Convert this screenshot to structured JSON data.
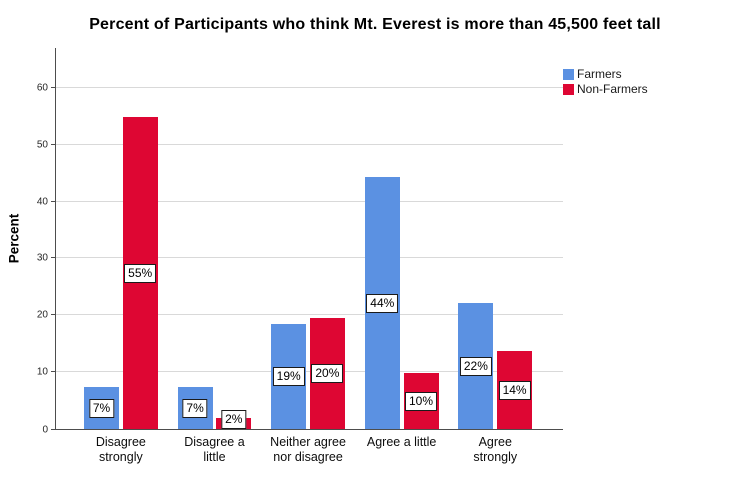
{
  "chart_data": {
    "type": "bar",
    "title": "Percent of Participants who think Mt. Everest is more than 45,500 feet tall",
    "xlabel": "",
    "ylabel": "Percent",
    "categories": [
      "Disagree strongly",
      "Disagree a little",
      "Neither agree nor disagree",
      "Agree a little",
      "Agree strongly"
    ],
    "categories_display": [
      "Disagree\nstrongly",
      "Disagree a\nlittle",
      "Neither agree\nnor disagree",
      "Agree a little",
      "Agree\nstrongly"
    ],
    "series": [
      {
        "name": "Farmers",
        "color": "#5B91E2",
        "values": [
          7.4,
          7.4,
          18.5,
          44.4,
          22.2
        ],
        "bar_labels": [
          "7%",
          "7%",
          "19%",
          "44%",
          "22%"
        ]
      },
      {
        "name": "Non-Farmers",
        "color": "#DE0633",
        "values": [
          54.9,
          2.0,
          19.6,
          9.8,
          13.8
        ],
        "bar_labels": [
          "55%",
          "2%",
          "20%",
          "10%",
          "14%"
        ]
      }
    ],
    "y_ticks": [
      0,
      10,
      20,
      30,
      40,
      50,
      60
    ],
    "ylim": [
      0,
      67
    ],
    "grid": true,
    "legend_position": "top-right"
  },
  "colors": {
    "farmers": "#5B91E2",
    "non_farmers": "#DE0633",
    "gridline": "#D9D9D9",
    "axis": "#4D4D4D",
    "bar_label_bg": "#FFFFFF",
    "bar_label_border": "#1A1A1A",
    "text": "#000000"
  }
}
